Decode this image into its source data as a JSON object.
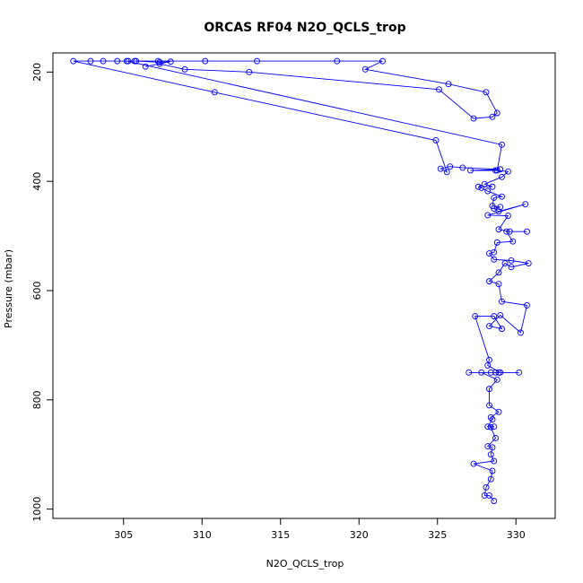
{
  "chart_data": {
    "type": "line",
    "title": "ORCAS RF04 N2O_QCLS_trop",
    "xlabel": "N2O_QCLS_trop",
    "ylabel": "Pressure (mbar)",
    "xlim": [
      300.5,
      332.5
    ],
    "ylim": [
      1017,
      165
    ],
    "y_reversed": true,
    "x_ticks": [
      305,
      310,
      315,
      320,
      325,
      330
    ],
    "x_tick_labels": [
      "305",
      "310",
      "315",
      "320",
      "325",
      "330"
    ],
    "y_ticks": [
      200,
      400,
      600,
      800,
      1000
    ],
    "y_tick_labels": [
      "200",
      "400",
      "600",
      "800",
      "1000"
    ],
    "grid": false,
    "series": [
      {
        "color": "#0000ff",
        "marker": "open-circle",
        "points": [
          [
            328.6,
            985
          ],
          [
            328.3,
            975
          ],
          [
            328.0,
            975
          ],
          [
            328.1,
            960
          ],
          [
            328.4,
            945
          ],
          [
            328.5,
            930
          ],
          [
            327.3,
            917
          ],
          [
            328.6,
            912
          ],
          [
            328.4,
            900
          ],
          [
            328.5,
            887
          ],
          [
            328.2,
            885
          ],
          [
            328.7,
            870
          ],
          [
            328.4,
            850
          ],
          [
            328.6,
            849
          ],
          [
            328.2,
            849
          ],
          [
            328.5,
            836
          ],
          [
            328.4,
            832
          ],
          [
            328.9,
            822
          ],
          [
            328.3,
            810
          ],
          [
            328.3,
            780
          ],
          [
            328.8,
            763
          ],
          [
            327.8,
            750
          ],
          [
            327.0,
            750
          ],
          [
            328.4,
            750
          ],
          [
            328.7,
            750
          ],
          [
            328.9,
            750
          ],
          [
            330.2,
            750
          ],
          [
            329.0,
            750
          ],
          [
            328.2,
            737
          ],
          [
            328.3,
            727
          ],
          [
            327.4,
            647
          ],
          [
            328.6,
            647
          ],
          [
            329.1,
            670
          ],
          [
            328.3,
            665
          ],
          [
            329.0,
            645
          ],
          [
            330.3,
            677
          ],
          [
            330.7,
            627
          ],
          [
            329.1,
            620
          ],
          [
            328.9,
            588
          ],
          [
            328.3,
            583
          ],
          [
            328.9,
            567
          ],
          [
            329.3,
            550
          ],
          [
            329.7,
            557
          ],
          [
            330.8,
            550
          ],
          [
            329.7,
            545
          ],
          [
            328.6,
            543
          ],
          [
            328.3,
            532
          ],
          [
            328.6,
            530
          ],
          [
            328.8,
            512
          ],
          [
            329.8,
            510
          ],
          [
            329.4,
            492
          ],
          [
            330.7,
            492
          ],
          [
            329.6,
            492
          ],
          [
            328.9,
            488
          ],
          [
            329.5,
            463
          ],
          [
            328.2,
            462
          ],
          [
            330.6,
            442
          ],
          [
            328.9,
            455
          ],
          [
            328.6,
            450
          ],
          [
            329.0,
            447
          ],
          [
            328.5,
            445
          ],
          [
            328.6,
            430
          ],
          [
            329.1,
            428
          ],
          [
            328.2,
            418
          ],
          [
            327.8,
            412
          ],
          [
            327.6,
            410
          ],
          [
            328.5,
            410
          ],
          [
            328.0,
            405
          ],
          [
            329.1,
            392
          ],
          [
            329.5,
            382
          ],
          [
            328.7,
            380
          ],
          [
            327.1,
            380
          ],
          [
            329.0,
            378
          ],
          [
            326.6,
            375
          ],
          [
            325.8,
            373
          ],
          [
            325.2,
            377
          ],
          [
            325.6,
            383
          ],
          [
            324.9,
            325
          ],
          [
            310.8,
            237
          ],
          [
            301.8,
            180
          ],
          [
            302.9,
            180
          ],
          [
            303.7,
            180
          ],
          [
            304.6,
            180
          ],
          [
            305.3,
            180
          ],
          [
            305.7,
            180
          ],
          [
            307.2,
            180
          ],
          [
            310.2,
            180
          ],
          [
            313.5,
            180
          ],
          [
            318.6,
            180
          ],
          [
            321.5,
            180
          ],
          [
            320.4,
            195
          ],
          [
            325.7,
            222
          ],
          [
            328.1,
            237
          ],
          [
            328.8,
            275
          ],
          [
            328.5,
            282
          ],
          [
            327.3,
            285
          ],
          [
            325.1,
            232
          ],
          [
            313.0,
            200
          ],
          [
            308.9,
            195
          ],
          [
            307.3,
            185
          ],
          [
            306.4,
            190
          ],
          [
            308.0,
            181
          ],
          [
            307.3,
            182
          ],
          [
            305.8,
            180
          ],
          [
            305.2,
            180
          ],
          [
            329.1,
            333
          ],
          [
            328.8,
            380
          ]
        ]
      }
    ]
  }
}
